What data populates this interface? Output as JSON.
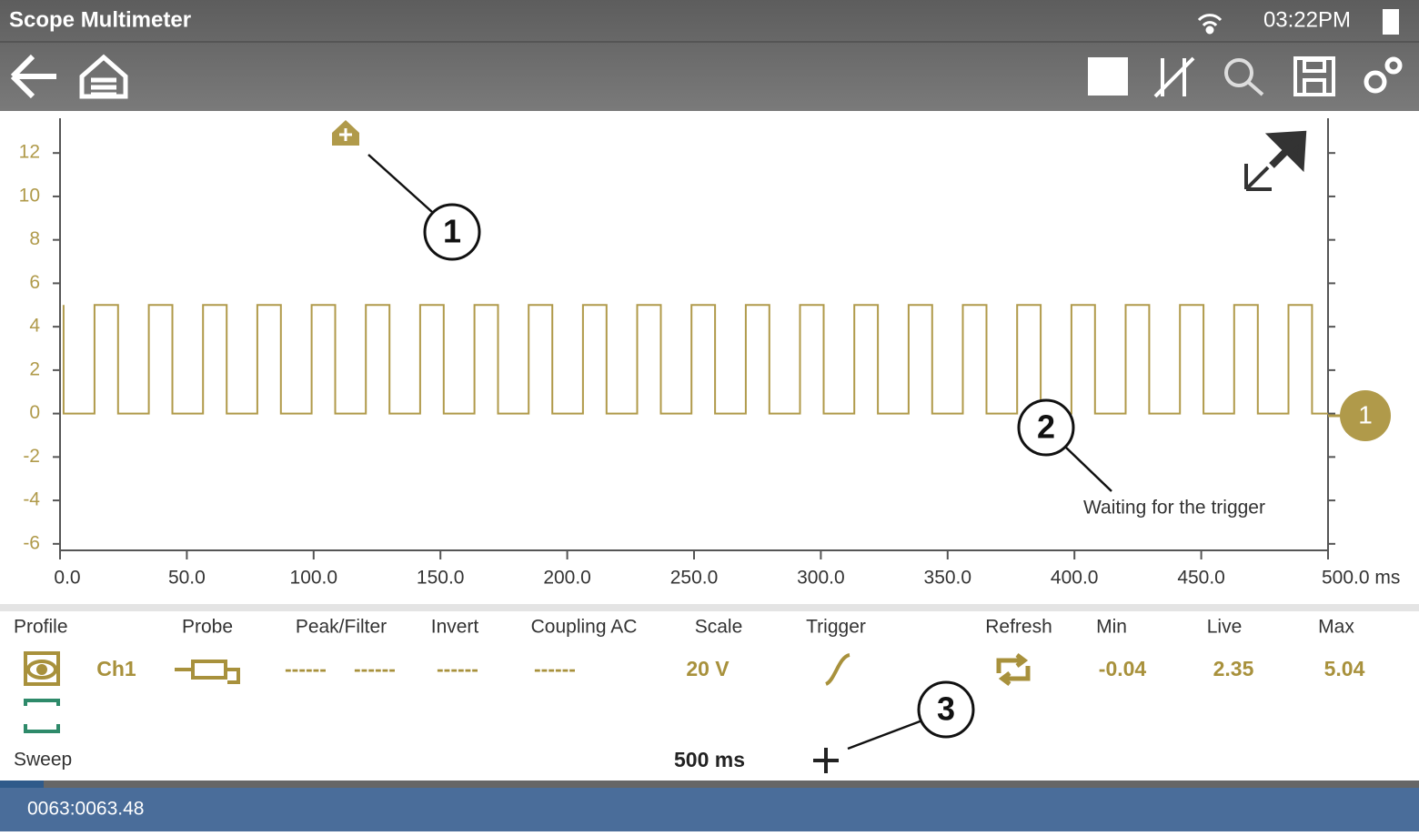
{
  "header": {
    "title": "Scope Multimeter",
    "time": "03:22PM"
  },
  "chart_data": {
    "type": "line",
    "color": "#b09a4a",
    "x": [
      1.4,
      1.4,
      13.6,
      13.6,
      22.9,
      22.9,
      35.0,
      35.0,
      44.3,
      44.3,
      56.4,
      56.4,
      65.7,
      65.7,
      77.8,
      77.8,
      87.1,
      87.1,
      99.2,
      99.2,
      108.5,
      108.5,
      120.6,
      120.6,
      129.9,
      129.9,
      142.0,
      142.0,
      151.3,
      151.3,
      163.4,
      163.4,
      172.7,
      172.7,
      184.8,
      184.8,
      194.1,
      194.1,
      206.2,
      206.2,
      215.5,
      215.5,
      227.6,
      227.6,
      236.9,
      236.9,
      249.0,
      249.0,
      258.3,
      258.3,
      270.4,
      270.4,
      279.7,
      279.7,
      291.8,
      291.8,
      301.1,
      301.1,
      313.2,
      313.2,
      322.5,
      322.5,
      334.6,
      334.6,
      343.9,
      343.9,
      356.0,
      356.0,
      365.3,
      365.3,
      377.4,
      377.4,
      386.7,
      386.7,
      398.8,
      398.8,
      408.1,
      408.1,
      420.2,
      420.2,
      429.5,
      429.5,
      441.6,
      441.6,
      450.9,
      450.9,
      463.0,
      463.0,
      472.3,
      472.3,
      484.4,
      484.4,
      493.7,
      493.7,
      500.0
    ],
    "values": [
      5.0,
      0.0,
      0.0,
      5.0,
      5.0,
      0.0,
      0.0,
      5.0,
      5.0,
      0.0,
      0.0,
      5.0,
      5.0,
      0.0,
      0.0,
      5.0,
      5.0,
      0.0,
      0.0,
      5.0,
      5.0,
      0.0,
      0.0,
      5.0,
      5.0,
      0.0,
      0.0,
      5.0,
      5.0,
      0.0,
      0.0,
      5.0,
      5.0,
      0.0,
      0.0,
      5.0,
      5.0,
      0.0,
      0.0,
      5.0,
      5.0,
      0.0,
      0.0,
      5.0,
      5.0,
      0.0,
      0.0,
      5.0,
      5.0,
      0.0,
      0.0,
      5.0,
      5.0,
      0.0,
      0.0,
      5.0,
      5.0,
      0.0,
      0.0,
      5.0,
      5.0,
      0.0,
      0.0,
      5.0,
      5.0,
      0.0,
      0.0,
      5.0,
      5.0,
      0.0,
      0.0,
      5.0,
      5.0,
      0.0,
      0.0,
      5.0,
      5.0,
      0.0,
      0.0,
      5.0,
      5.0,
      0.0,
      0.0,
      5.0,
      5.0,
      0.0,
      0.0,
      5.0,
      5.0,
      0.0,
      0.0,
      5.0,
      5.0,
      0.0,
      0.0
    ],
    "xlim": [
      0,
      500
    ],
    "ylim": [
      -6.3,
      13.6
    ],
    "yticks": [
      -6,
      -4,
      -2,
      0,
      2,
      4,
      6,
      8,
      10,
      12
    ],
    "xticks": [
      {
        "value": 0,
        "label": "0.0"
      },
      {
        "value": 50,
        "label": "50.0"
      },
      {
        "value": 100,
        "label": "100.0"
      },
      {
        "value": 150,
        "label": "150.0"
      },
      {
        "value": 200,
        "label": "200.0"
      },
      {
        "value": 250,
        "label": "250.0"
      },
      {
        "value": 300,
        "label": "300.0"
      },
      {
        "value": 350,
        "label": "350.0"
      },
      {
        "value": 400,
        "label": "400.0"
      },
      {
        "value": 450,
        "label": "450.0"
      },
      {
        "value": 500,
        "label": "500.0 ms"
      }
    ],
    "callouts": [
      "1",
      "2",
      "3"
    ],
    "status": "Waiting for the trigger",
    "channel_marker": "1"
  },
  "controls": {
    "headers": [
      "Profile",
      "Probe",
      "Peak/Filter",
      "Invert",
      "Coupling AC",
      "Scale",
      "Trigger",
      "Refresh",
      "Min",
      "Live",
      "Max"
    ],
    "channel": "Ch1",
    "placeholders": [
      "------",
      "------",
      "------",
      "------"
    ],
    "scale": "20 V",
    "min": "-0.04",
    "live": "2.35",
    "max": "5.04",
    "sweep_label": "Sweep",
    "sweep": "500 ms"
  },
  "status_bar": "0063:0063.48"
}
